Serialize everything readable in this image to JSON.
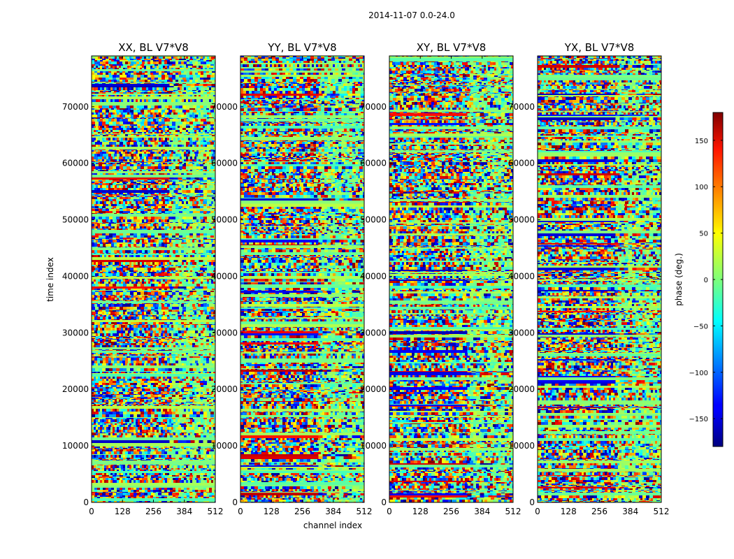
{
  "figure": {
    "suptitle": "2014-11-07 0.0-24.0"
  },
  "chart_data": {
    "type": "heatmap",
    "xlabel": "channel index",
    "ylabel": "time index",
    "xlim": [
      0,
      512
    ],
    "ylim": [
      0,
      79000
    ],
    "x_ticks": [
      0,
      128,
      256,
      384,
      512
    ],
    "y_ticks": [
      0,
      10000,
      20000,
      30000,
      40000,
      50000,
      60000,
      70000
    ],
    "colormap": "jet",
    "colorbar": {
      "label": "phase (deg.)",
      "range": [
        -180,
        180
      ],
      "ticks": [
        -150,
        -100,
        -50,
        0,
        50,
        100,
        150
      ],
      "tick_labels": [
        "−150",
        "−100",
        "−50",
        "0",
        "50",
        "100",
        "150"
      ]
    },
    "panels": [
      {
        "title": "XX, BL V7*V8"
      },
      {
        "title": "YY, BL V7*V8"
      },
      {
        "title": "XY, BL V7*V8"
      },
      {
        "title": "YX, BL V7*V8"
      }
    ]
  }
}
